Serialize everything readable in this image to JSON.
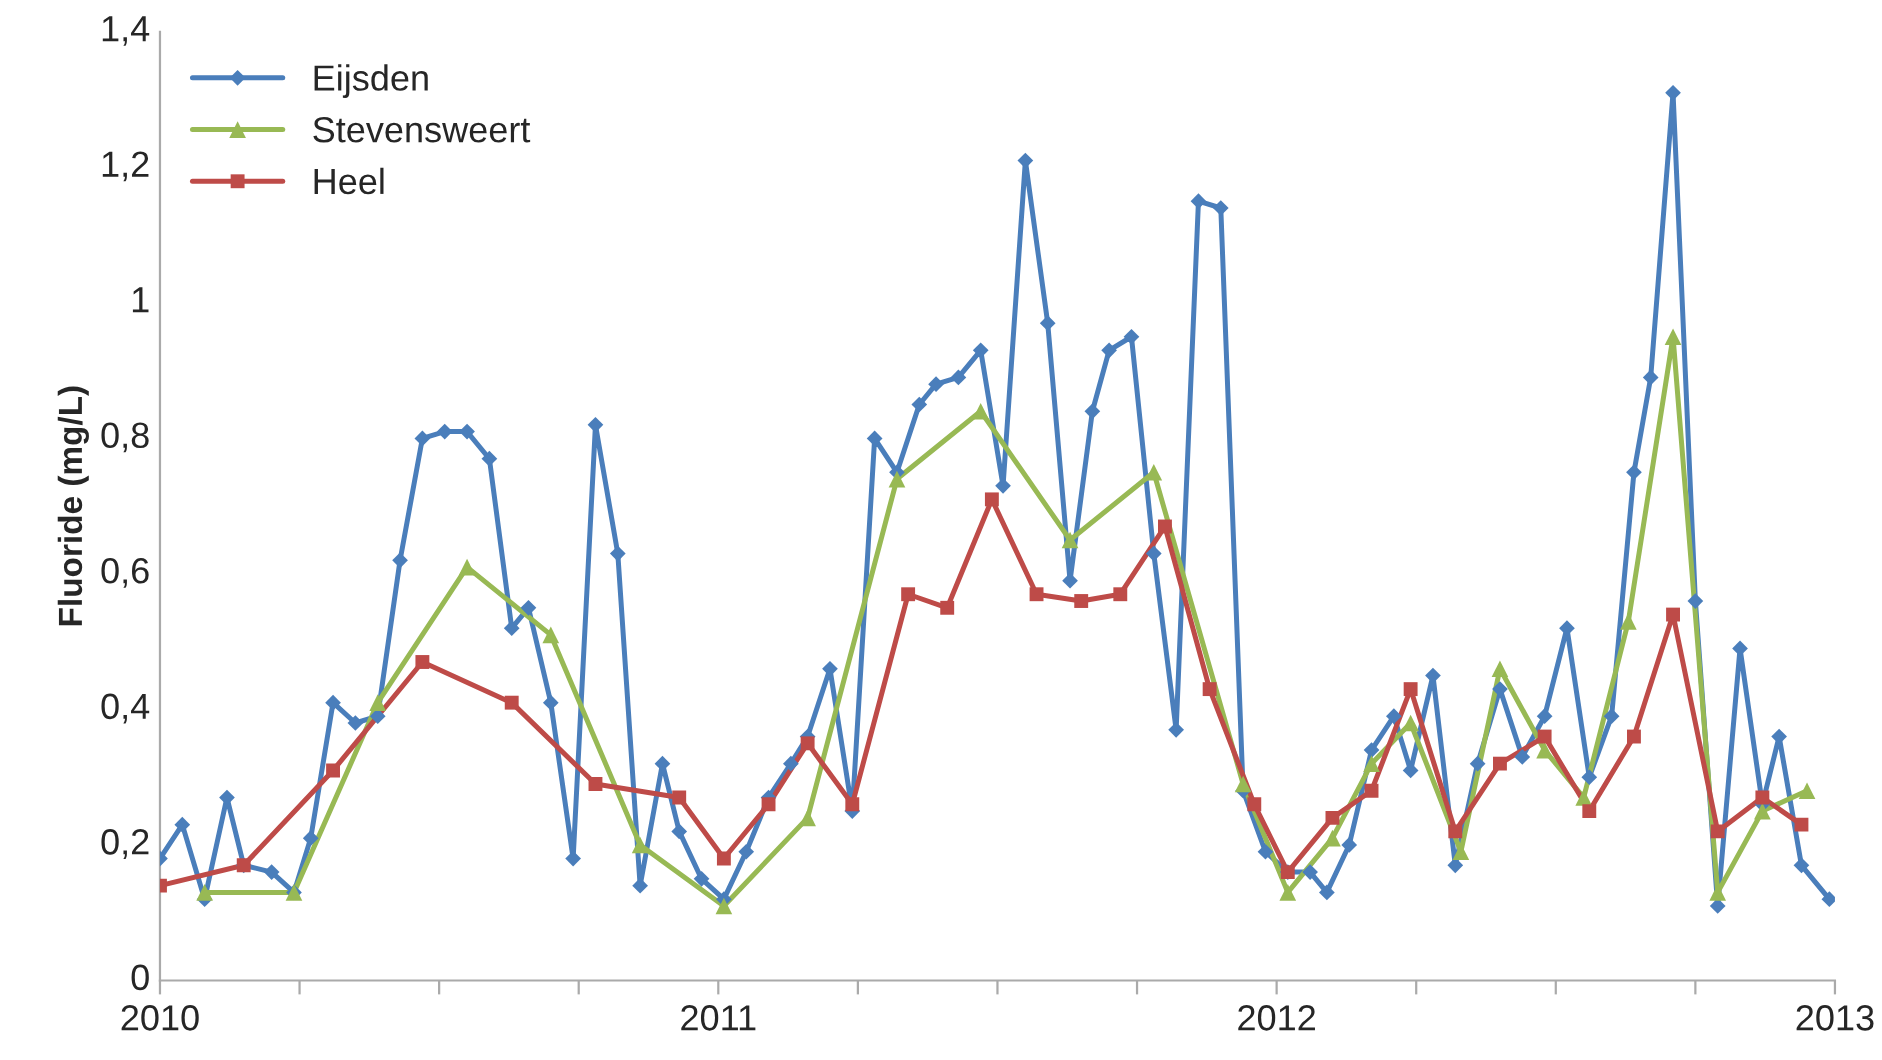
{
  "chart_data": {
    "type": "line",
    "ylabel": "Fluoride (mg/L)",
    "xlim": [
      2010,
      2013
    ],
    "xticks": [
      2010,
      {
        "value": 2010.25,
        "label": null
      },
      {
        "value": 2010.5,
        "label": null
      },
      {
        "value": 2010.75,
        "label": null
      },
      2011,
      {
        "value": 2011.25,
        "label": null
      },
      {
        "value": 2011.5,
        "label": null
      },
      {
        "value": 2011.75,
        "label": null
      },
      2012,
      {
        "value": 2012.25,
        "label": null
      },
      {
        "value": 2012.5,
        "label": null
      },
      {
        "value": 2012.75,
        "label": null
      },
      2013
    ],
    "ylim": [
      0,
      1.4
    ],
    "yticks": [
      0,
      {
        "value": 0.2,
        "label": "0,2"
      },
      {
        "value": 0.4,
        "label": "0,4"
      },
      {
        "value": 0.6,
        "label": "0,6"
      },
      {
        "value": 0.8,
        "label": "0,8"
      },
      1,
      {
        "value": 1.2,
        "label": "1,2"
      },
      {
        "value": 1.4,
        "label": "1,4"
      }
    ],
    "grid": false,
    "legend": "top left",
    "line_style": "solid",
    "series": [
      {
        "name": "Eijsden",
        "color": "#4a7ebb",
        "marker": "diamond",
        "x": [
          2010.0,
          2010.04,
          2010.08,
          2010.12,
          2010.15,
          2010.2,
          2010.24,
          2010.27,
          2010.31,
          2010.35,
          2010.39,
          2010.43,
          2010.47,
          2010.51,
          2010.55,
          2010.59,
          2010.63,
          2010.66,
          2010.7,
          2010.74,
          2010.78,
          2010.82,
          2010.86,
          2010.9,
          2010.93,
          2010.97,
          2011.01,
          2011.05,
          2011.09,
          2011.13,
          2011.16,
          2011.2,
          2011.24,
          2011.28,
          2011.32,
          2011.36,
          2011.39,
          2011.43,
          2011.47,
          2011.51,
          2011.55,
          2011.59,
          2011.63,
          2011.67,
          2011.7,
          2011.74,
          2011.78,
          2011.82,
          2011.86,
          2011.9,
          2011.94,
          2011.98,
          2012.02,
          2012.06,
          2012.09,
          2012.13,
          2012.17,
          2012.21,
          2012.24,
          2012.28,
          2012.32,
          2012.36,
          2012.4,
          2012.44,
          2012.48,
          2012.52,
          2012.56,
          2012.6,
          2012.64,
          2012.67,
          2012.71,
          2012.75,
          2012.79,
          2012.83,
          2012.87,
          2012.9,
          2012.94,
          2012.99
        ],
        "values": [
          0.18,
          0.23,
          0.12,
          0.27,
          0.17,
          0.16,
          0.13,
          0.21,
          0.41,
          0.38,
          0.39,
          0.62,
          0.8,
          0.81,
          0.81,
          0.77,
          0.52,
          0.55,
          0.41,
          0.18,
          0.82,
          0.63,
          0.14,
          0.32,
          0.22,
          0.15,
          0.12,
          0.19,
          0.27,
          0.32,
          0.36,
          0.46,
          0.25,
          0.8,
          0.75,
          0.85,
          0.88,
          0.89,
          0.93,
          0.73,
          1.21,
          0.97,
          0.59,
          0.84,
          0.93,
          0.95,
          0.63,
          0.37,
          1.15,
          1.14,
          0.28,
          0.19,
          0.16,
          0.16,
          0.13,
          0.2,
          0.34,
          0.39,
          0.31,
          0.45,
          0.17,
          0.32,
          0.43,
          0.33,
          0.39,
          0.52,
          0.3,
          0.39,
          0.75,
          0.89,
          1.31,
          0.56,
          0.11,
          0.49,
          0.26,
          0.36,
          0.17,
          0.12
        ]
      },
      {
        "name": "Stevensweert",
        "color": "#98b954",
        "marker": "triangle",
        "x": [
          2010.08,
          2010.24,
          2010.39,
          2010.55,
          2010.7,
          2010.86,
          2011.01,
          2011.16,
          2011.32,
          2011.47,
          2011.63,
          2011.78,
          2011.94,
          2012.02,
          2012.1,
          2012.17,
          2012.24,
          2012.33,
          2012.4,
          2012.48,
          2012.55,
          2012.63,
          2012.71,
          2012.79,
          2012.87,
          2012.95
        ],
        "values": [
          0.13,
          0.13,
          0.41,
          0.61,
          0.51,
          0.2,
          0.11,
          0.24,
          0.74,
          0.84,
          0.65,
          0.75,
          0.29,
          0.13,
          0.21,
          0.32,
          0.38,
          0.19,
          0.46,
          0.34,
          0.27,
          0.53,
          0.95,
          0.13,
          0.25,
          0.28
        ]
      },
      {
        "name": "Heel",
        "color": "#be4b48",
        "marker": "square",
        "x": [
          2010.0,
          2010.15,
          2010.31,
          2010.47,
          2010.63,
          2010.78,
          2010.93,
          2011.01,
          2011.09,
          2011.16,
          2011.24,
          2011.34,
          2011.41,
          2011.49,
          2011.57,
          2011.65,
          2011.72,
          2011.8,
          2011.88,
          2011.96,
          2012.02,
          2012.1,
          2012.17,
          2012.24,
          2012.32,
          2012.4,
          2012.48,
          2012.56,
          2012.64,
          2012.71,
          2012.79,
          2012.87,
          2012.94
        ],
        "values": [
          0.14,
          0.17,
          0.31,
          0.47,
          0.41,
          0.29,
          0.27,
          0.18,
          0.26,
          0.35,
          0.26,
          0.57,
          0.55,
          0.71,
          0.57,
          0.56,
          0.57,
          0.67,
          0.43,
          0.26,
          0.16,
          0.24,
          0.28,
          0.43,
          0.22,
          0.32,
          0.36,
          0.25,
          0.36,
          0.54,
          0.22,
          0.27,
          0.23
        ]
      }
    ]
  }
}
